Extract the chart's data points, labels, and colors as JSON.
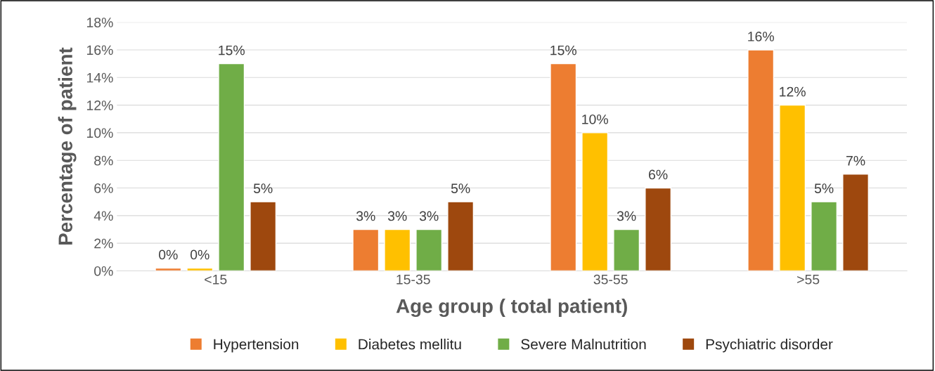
{
  "chart_data": {
    "type": "bar",
    "xlabel": "Age group ( total patient)",
    "ylabel": "Percentage of patient",
    "categories": [
      "<15",
      "15-35",
      "35-55",
      ">55"
    ],
    "series": [
      {
        "name": "Hypertension",
        "color": "#ed7d31",
        "values": [
          0.2,
          3,
          15,
          16
        ],
        "value_labels": [
          "0%",
          "3%",
          "15%",
          "16%"
        ]
      },
      {
        "name": "Diabetes mellitu",
        "color": "#ffc000",
        "values": [
          0.2,
          3,
          10,
          12
        ],
        "value_labels": [
          "0%",
          "3%",
          "10%",
          "12%"
        ]
      },
      {
        "name": "Severe Malnutrition",
        "color": "#70ad47",
        "values": [
          15,
          3,
          3,
          5
        ],
        "value_labels": [
          "15%",
          "3%",
          "3%",
          "5%"
        ]
      },
      {
        "name": "Psychiatric disorder",
        "color": "#9e480e",
        "values": [
          5,
          5,
          6,
          7
        ],
        "value_labels": [
          "5%",
          "5%",
          "6%",
          "7%"
        ]
      }
    ],
    "ylim": [
      0,
      18
    ],
    "yticks": [
      {
        "value": 0,
        "label": "0%"
      },
      {
        "value": 2,
        "label": "2%"
      },
      {
        "value": 4,
        "label": "4%"
      },
      {
        "value": 6,
        "label": "6%"
      },
      {
        "value": 8,
        "label": "8%"
      },
      {
        "value": 10,
        "label": "10%"
      },
      {
        "value": 12,
        "label": "12%"
      },
      {
        "value": 14,
        "label": "14%"
      },
      {
        "value": 16,
        "label": "16%"
      },
      {
        "value": 18,
        "label": "18%"
      }
    ],
    "grid": "y",
    "legend": "bottom"
  }
}
